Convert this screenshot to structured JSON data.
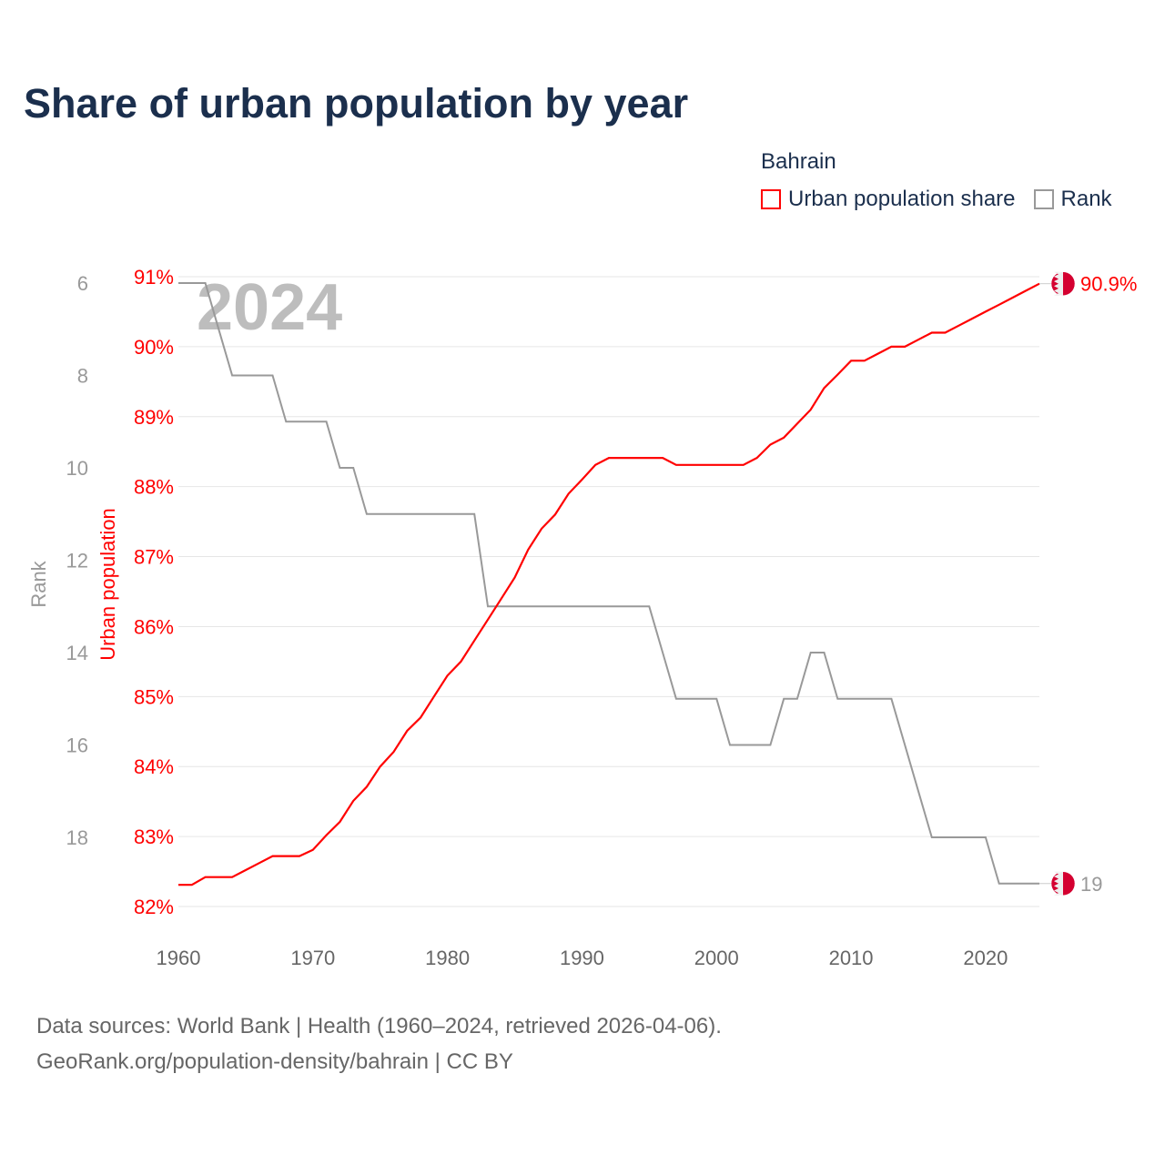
{
  "title": "Share of urban population by year",
  "legend": {
    "title": "Bahrain",
    "items": [
      {
        "label": "Urban population share",
        "color": "#ff0000"
      },
      {
        "label": "Rank",
        "color": "#999999"
      }
    ]
  },
  "source": {
    "line1": "Data sources: World Bank | Health (1960–2024, retrieved 2026-04-06).",
    "line2": "GeoRank.org/population-density/bahrain | CC BY"
  },
  "chart_data": {
    "type": "line",
    "title": "Share of urban population by year",
    "watermark_year": "2024",
    "x": [
      1960,
      1961,
      1962,
      1963,
      1964,
      1965,
      1966,
      1967,
      1968,
      1969,
      1970,
      1971,
      1972,
      1973,
      1974,
      1975,
      1976,
      1977,
      1978,
      1979,
      1980,
      1981,
      1982,
      1983,
      1984,
      1985,
      1986,
      1987,
      1988,
      1989,
      1990,
      1991,
      1992,
      1993,
      1994,
      1995,
      1996,
      1997,
      1998,
      1999,
      2000,
      2001,
      2002,
      2003,
      2004,
      2005,
      2006,
      2007,
      2008,
      2009,
      2010,
      2011,
      2012,
      2013,
      2014,
      2015,
      2016,
      2017,
      2018,
      2019,
      2020,
      2021,
      2022,
      2023,
      2024
    ],
    "xlim": [
      1960,
      2024
    ],
    "xticks": [
      "1960",
      "1970",
      "1980",
      "1990",
      "2000",
      "2010",
      "2020"
    ],
    "series": [
      {
        "name": "Urban population share",
        "axis": "left-inner",
        "ylabel": "Urban population",
        "color": "#ff0000",
        "ylim": [
          82,
          91
        ],
        "yticks": [
          "91%",
          "90%",
          "89%",
          "88%",
          "87%",
          "86%",
          "85%",
          "84%",
          "83%",
          "82%"
        ],
        "end_label": "90.9%",
        "values": [
          82.31,
          82.31,
          82.42,
          82.42,
          82.42,
          82.52,
          82.62,
          82.72,
          82.72,
          82.72,
          82.81,
          83.02,
          83.21,
          83.51,
          83.71,
          84.0,
          84.21,
          84.51,
          84.7,
          85.0,
          85.3,
          85.5,
          85.8,
          86.1,
          86.4,
          86.7,
          87.1,
          87.4,
          87.6,
          87.9,
          88.1,
          88.31,
          88.41,
          88.41,
          88.41,
          88.41,
          88.41,
          88.31,
          88.31,
          88.31,
          88.31,
          88.31,
          88.31,
          88.41,
          88.6,
          88.7,
          88.9,
          89.1,
          89.41,
          89.6,
          89.8,
          89.8,
          89.9,
          90.0,
          90.0,
          90.1,
          90.2,
          90.2,
          90.3,
          90.4,
          90.5,
          90.6,
          90.7,
          90.8,
          90.9
        ]
      },
      {
        "name": "Rank",
        "axis": "left-outer",
        "ylabel": "Rank",
        "color": "#999999",
        "ylim": [
          6,
          19
        ],
        "inverted": true,
        "yticks": [
          "6",
          "8",
          "10",
          "12",
          "14",
          "16",
          "18"
        ],
        "end_label": "19",
        "values": [
          6,
          6,
          6,
          7,
          8,
          8,
          8,
          8,
          9,
          9,
          9,
          9,
          10,
          10,
          11,
          11,
          11,
          11,
          11,
          11,
          11,
          11,
          11,
          13,
          13,
          13,
          13,
          13,
          13,
          13,
          13,
          13,
          13,
          13,
          13,
          13,
          14,
          15,
          15,
          15,
          15,
          16,
          16,
          16,
          16,
          15,
          15,
          14,
          14,
          15,
          15,
          15,
          15,
          15,
          16,
          17,
          18,
          18,
          18,
          18,
          18,
          19,
          19,
          19,
          19
        ]
      }
    ],
    "grid": true,
    "legend_position": "top-right"
  }
}
